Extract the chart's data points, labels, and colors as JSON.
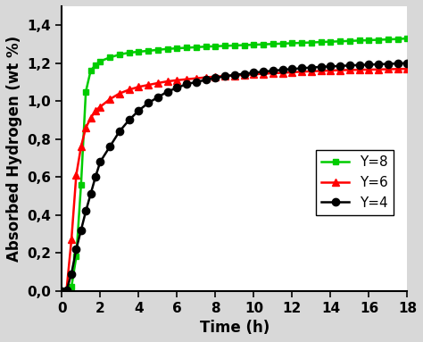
{
  "title": "",
  "xlabel": "Time (h)",
  "ylabel": "Absorbed Hydrogen (wt %)",
  "xlim": [
    0,
    18
  ],
  "ylim": [
    0.0,
    1.5
  ],
  "yticks": [
    0.0,
    0.2,
    0.4,
    0.6,
    0.8,
    1.0,
    1.2,
    1.4
  ],
  "xticks": [
    0,
    2,
    4,
    6,
    8,
    10,
    12,
    14,
    16,
    18
  ],
  "series": [
    {
      "label": "Y=8",
      "color": "#00cc00",
      "marker": "s",
      "markersize": 5,
      "linewidth": 1.8,
      "x": [
        0,
        0.083,
        0.25,
        0.5,
        0.75,
        1.0,
        1.25,
        1.5,
        1.75,
        2.0,
        2.5,
        3.0,
        3.5,
        4.0,
        4.5,
        5.0,
        5.5,
        6.0,
        6.5,
        7.0,
        7.5,
        8.0,
        8.5,
        9.0,
        9.5,
        10.0,
        10.5,
        11.0,
        11.5,
        12.0,
        12.5,
        13.0,
        13.5,
        14.0,
        14.5,
        15.0,
        15.5,
        16.0,
        16.5,
        17.0,
        17.5,
        18.0
      ],
      "y": [
        0.0,
        0.0,
        0.0,
        0.02,
        0.18,
        0.56,
        1.05,
        1.16,
        1.19,
        1.21,
        1.23,
        1.245,
        1.255,
        1.26,
        1.265,
        1.27,
        1.275,
        1.278,
        1.281,
        1.284,
        1.287,
        1.289,
        1.291,
        1.293,
        1.295,
        1.297,
        1.299,
        1.301,
        1.303,
        1.305,
        1.307,
        1.309,
        1.311,
        1.313,
        1.315,
        1.317,
        1.319,
        1.321,
        1.323,
        1.325,
        1.327,
        1.33
      ]
    },
    {
      "label": "Y=6",
      "color": "#ff0000",
      "marker": "^",
      "markersize": 6,
      "linewidth": 1.8,
      "x": [
        0,
        0.25,
        0.5,
        0.75,
        1.0,
        1.25,
        1.5,
        1.75,
        2.0,
        2.5,
        3.0,
        3.5,
        4.0,
        4.5,
        5.0,
        5.5,
        6.0,
        6.5,
        7.0,
        7.5,
        8.0,
        8.5,
        9.0,
        9.5,
        10.0,
        10.5,
        11.0,
        11.5,
        12.0,
        12.5,
        13.0,
        13.5,
        14.0,
        14.5,
        15.0,
        15.5,
        16.0,
        16.5,
        17.0,
        17.5,
        18.0
      ],
      "y": [
        0.0,
        0.01,
        0.27,
        0.61,
        0.76,
        0.86,
        0.91,
        0.95,
        0.97,
        1.01,
        1.04,
        1.06,
        1.075,
        1.085,
        1.095,
        1.104,
        1.11,
        1.115,
        1.12,
        1.125,
        1.129,
        1.132,
        1.135,
        1.138,
        1.141,
        1.144,
        1.147,
        1.149,
        1.152,
        1.155,
        1.157,
        1.159,
        1.161,
        1.163,
        1.164,
        1.165,
        1.166,
        1.167,
        1.168,
        1.169,
        1.17
      ]
    },
    {
      "label": "Y=4",
      "color": "#000000",
      "marker": "o",
      "markersize": 6,
      "linewidth": 1.8,
      "x": [
        0,
        0.25,
        0.5,
        0.75,
        1.0,
        1.25,
        1.5,
        1.75,
        2.0,
        2.5,
        3.0,
        3.5,
        4.0,
        4.5,
        5.0,
        5.5,
        6.0,
        6.5,
        7.0,
        7.5,
        8.0,
        8.5,
        9.0,
        9.5,
        10.0,
        10.5,
        11.0,
        11.5,
        12.0,
        12.5,
        13.0,
        13.5,
        14.0,
        14.5,
        15.0,
        15.5,
        16.0,
        16.5,
        17.0,
        17.5,
        18.0
      ],
      "y": [
        0.0,
        0.005,
        0.09,
        0.22,
        0.32,
        0.42,
        0.51,
        0.6,
        0.68,
        0.76,
        0.84,
        0.9,
        0.95,
        0.99,
        1.02,
        1.05,
        1.07,
        1.09,
        1.1,
        1.112,
        1.122,
        1.131,
        1.138,
        1.144,
        1.15,
        1.155,
        1.16,
        1.165,
        1.169,
        1.173,
        1.177,
        1.18,
        1.183,
        1.185,
        1.188,
        1.19,
        1.192,
        1.194,
        1.196,
        1.198,
        1.2
      ]
    }
  ],
  "legend_loc": "center right",
  "background_color": "#ffffff",
  "fig_facecolor": "#d8d8d8",
  "axis_label_fontsize": 12,
  "tick_fontsize": 11,
  "legend_fontsize": 11
}
